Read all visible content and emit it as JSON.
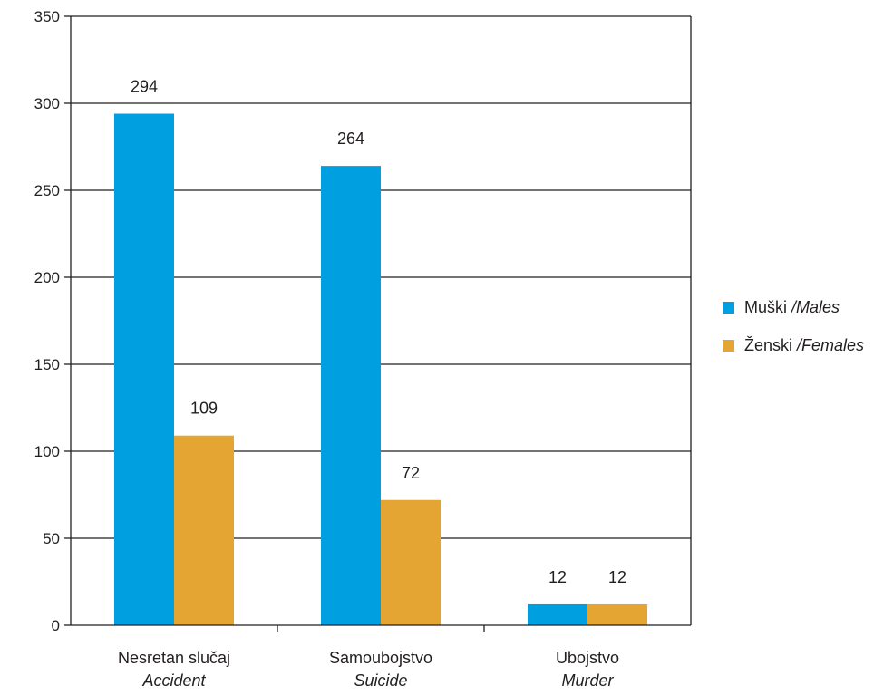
{
  "chart_data": {
    "type": "bar",
    "categories": [
      {
        "main": "Nesretan slučaj",
        "sub": "Accident"
      },
      {
        "main": "Samoubojstvo",
        "sub": "Suicide"
      },
      {
        "main": "Ubojstvo",
        "sub": "Murder"
      }
    ],
    "series": [
      {
        "name_main": "Muški",
        "name_sub": "/Males",
        "color": "#009fdf",
        "values": [
          294,
          264,
          12
        ]
      },
      {
        "name_main": "Ženski",
        "name_sub": "/Females",
        "color": "#e5a532",
        "values": [
          109,
          72,
          12
        ]
      }
    ],
    "ylim": [
      0,
      350
    ],
    "yticks": [
      0,
      50,
      100,
      150,
      200,
      250,
      300,
      350
    ],
    "grid": true,
    "legend_position": "right"
  }
}
